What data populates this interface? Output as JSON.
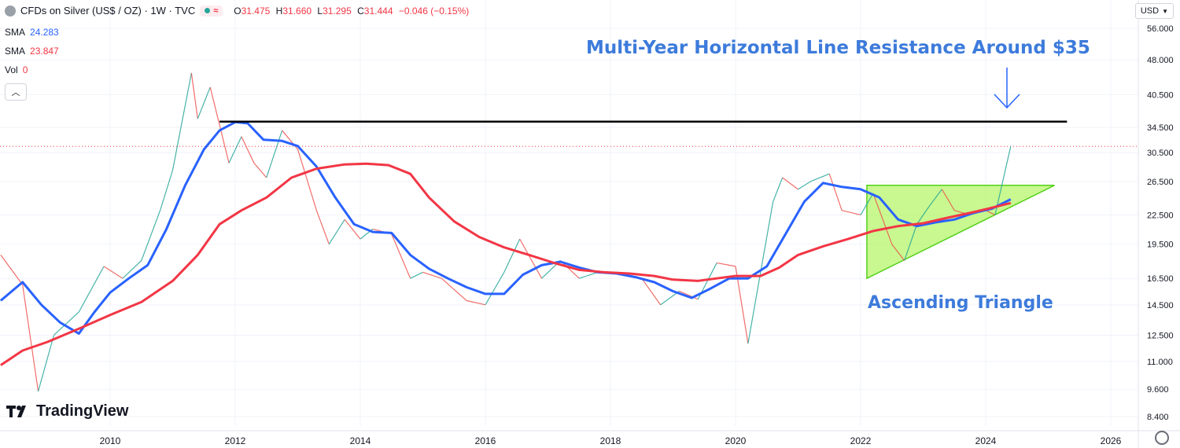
{
  "header": {
    "title": "CFDs on Silver (US$ / OZ) · 1W · TVC",
    "ohlc": {
      "o_label": "O",
      "o": "31.475",
      "h_label": "H",
      "h": "31.660",
      "l_label": "L",
      "l": "31.295",
      "c_label": "C",
      "c": "31.444",
      "change": "−0.046 (−0.15%)"
    }
  },
  "indicators": [
    {
      "name": "SMA",
      "value": "24.283",
      "color": "#2962ff"
    },
    {
      "name": "SMA",
      "value": "23.847",
      "color": "#f23645"
    },
    {
      "name": "Vol",
      "value": "0",
      "color": "#f23645"
    }
  ],
  "currency": "USD",
  "logo": "TradingView",
  "annotations": {
    "resistance": "Multi-Year Horizontal Line Resistance Around $35",
    "triangle": "Ascending Triangle"
  },
  "chart_data": {
    "type": "line",
    "title": "",
    "log_scale": true,
    "y_ticks": [
      "56.000",
      "48.000",
      "40.500",
      "34.500",
      "30.500",
      "26.500",
      "22.500",
      "19.500",
      "16.500",
      "14.500",
      "12.500",
      "11.000",
      "9.600",
      "8.400"
    ],
    "x_ticks": [
      "2010",
      "2012",
      "2014",
      "2016",
      "2018",
      "2020",
      "2022",
      "2024",
      "2026"
    ],
    "xlim": [
      2008.25,
      2024.45
    ],
    "price_series": [
      [
        2008.25,
        18.5
      ],
      [
        2008.6,
        16.0
      ],
      [
        2008.85,
        9.5
      ],
      [
        2009.1,
        12.5
      ],
      [
        2009.5,
        14.0
      ],
      [
        2009.9,
        17.5
      ],
      [
        2010.2,
        16.5
      ],
      [
        2010.5,
        18.0
      ],
      [
        2010.8,
        23.0
      ],
      [
        2011.0,
        28.0
      ],
      [
        2011.3,
        45.0
      ],
      [
        2011.4,
        36.0
      ],
      [
        2011.6,
        42.0
      ],
      [
        2011.9,
        29.0
      ],
      [
        2012.1,
        33.0
      ],
      [
        2012.3,
        29.0
      ],
      [
        2012.5,
        27.0
      ],
      [
        2012.75,
        34.0
      ],
      [
        2013.0,
        31.0
      ],
      [
        2013.3,
        23.0
      ],
      [
        2013.5,
        19.5
      ],
      [
        2013.75,
        22.0
      ],
      [
        2014.0,
        20.0
      ],
      [
        2014.2,
        21.0
      ],
      [
        2014.5,
        20.5
      ],
      [
        2014.8,
        16.5
      ],
      [
        2015.0,
        17.0
      ],
      [
        2015.3,
        16.5
      ],
      [
        2015.7,
        14.8
      ],
      [
        2016.0,
        14.5
      ],
      [
        2016.3,
        17.0
      ],
      [
        2016.55,
        20.0
      ],
      [
        2016.9,
        16.5
      ],
      [
        2017.2,
        18.0
      ],
      [
        2017.5,
        16.5
      ],
      [
        2017.8,
        17.0
      ],
      [
        2018.1,
        17.0
      ],
      [
        2018.5,
        16.5
      ],
      [
        2018.8,
        14.5
      ],
      [
        2019.1,
        15.5
      ],
      [
        2019.4,
        14.9
      ],
      [
        2019.7,
        17.8
      ],
      [
        2020.0,
        17.5
      ],
      [
        2020.2,
        12.0
      ],
      [
        2020.4,
        17.0
      ],
      [
        2020.6,
        24.0
      ],
      [
        2020.75,
        27.0
      ],
      [
        2021.0,
        25.5
      ],
      [
        2021.2,
        26.5
      ],
      [
        2021.5,
        27.5
      ],
      [
        2021.7,
        23.0
      ],
      [
        2022.0,
        22.5
      ],
      [
        2022.2,
        25.0
      ],
      [
        2022.5,
        19.5
      ],
      [
        2022.7,
        18.0
      ],
      [
        2022.9,
        21.5
      ],
      [
        2023.1,
        23.5
      ],
      [
        2023.3,
        25.5
      ],
      [
        2023.5,
        23.0
      ],
      [
        2023.75,
        22.5
      ],
      [
        2024.0,
        23.0
      ],
      [
        2024.15,
        22.5
      ],
      [
        2024.3,
        27.5
      ],
      [
        2024.4,
        31.444
      ]
    ],
    "series": [
      {
        "color": "#2962ff",
        "points": [
          [
            2008.25,
            14.8
          ],
          [
            2008.6,
            16.2
          ],
          [
            2008.9,
            14.5
          ],
          [
            2009.2,
            13.3
          ],
          [
            2009.5,
            12.6
          ],
          [
            2009.75,
            14.0
          ],
          [
            2010.0,
            15.4
          ],
          [
            2010.3,
            16.5
          ],
          [
            2010.6,
            17.6
          ],
          [
            2010.9,
            21.0
          ],
          [
            2011.2,
            26.0
          ],
          [
            2011.5,
            31.0
          ],
          [
            2011.75,
            34.0
          ],
          [
            2012.0,
            35.4
          ],
          [
            2012.2,
            35.2
          ],
          [
            2012.45,
            32.5
          ],
          [
            2012.75,
            32.3
          ],
          [
            2013.0,
            31.5
          ],
          [
            2013.3,
            28.5
          ],
          [
            2013.6,
            24.5
          ],
          [
            2013.9,
            21.5
          ],
          [
            2014.2,
            20.7
          ],
          [
            2014.5,
            20.6
          ],
          [
            2014.8,
            18.5
          ],
          [
            2015.1,
            17.3
          ],
          [
            2015.4,
            16.5
          ],
          [
            2015.7,
            15.8
          ],
          [
            2016.0,
            15.3
          ],
          [
            2016.3,
            15.3
          ],
          [
            2016.6,
            16.8
          ],
          [
            2016.9,
            17.6
          ],
          [
            2017.2,
            17.9
          ],
          [
            2017.5,
            17.4
          ],
          [
            2017.8,
            17.0
          ],
          [
            2018.1,
            16.9
          ],
          [
            2018.4,
            16.6
          ],
          [
            2018.7,
            16.2
          ],
          [
            2019.0,
            15.5
          ],
          [
            2019.3,
            15.0
          ],
          [
            2019.6,
            15.7
          ],
          [
            2019.9,
            16.5
          ],
          [
            2020.2,
            16.5
          ],
          [
            2020.5,
            17.5
          ],
          [
            2020.8,
            20.5
          ],
          [
            2021.1,
            24.0
          ],
          [
            2021.4,
            26.3
          ],
          [
            2021.7,
            25.8
          ],
          [
            2022.0,
            25.5
          ],
          [
            2022.3,
            24.5
          ],
          [
            2022.6,
            22.0
          ],
          [
            2022.9,
            21.3
          ],
          [
            2023.2,
            21.7
          ],
          [
            2023.5,
            22.0
          ],
          [
            2023.8,
            22.7
          ],
          [
            2024.1,
            23.2
          ],
          [
            2024.4,
            24.283
          ]
        ]
      },
      {
        "color": "#f23645",
        "points": [
          [
            2008.25,
            10.8
          ],
          [
            2008.6,
            11.6
          ],
          [
            2009.0,
            12.1
          ],
          [
            2009.5,
            12.9
          ],
          [
            2010.0,
            13.8
          ],
          [
            2010.5,
            14.7
          ],
          [
            2011.0,
            16.3
          ],
          [
            2011.4,
            18.5
          ],
          [
            2011.75,
            21.5
          ],
          [
            2012.1,
            23.0
          ],
          [
            2012.5,
            24.5
          ],
          [
            2012.9,
            27.0
          ],
          [
            2013.3,
            28.2
          ],
          [
            2013.75,
            28.8
          ],
          [
            2014.1,
            28.9
          ],
          [
            2014.45,
            28.7
          ],
          [
            2014.8,
            27.5
          ],
          [
            2015.1,
            24.5
          ],
          [
            2015.5,
            21.8
          ],
          [
            2015.9,
            20.2
          ],
          [
            2016.3,
            19.2
          ],
          [
            2016.7,
            18.5
          ],
          [
            2017.1,
            17.8
          ],
          [
            2017.5,
            17.2
          ],
          [
            2017.9,
            17.0
          ],
          [
            2018.3,
            16.9
          ],
          [
            2018.7,
            16.7
          ],
          [
            2019.0,
            16.4
          ],
          [
            2019.4,
            16.3
          ],
          [
            2019.7,
            16.5
          ],
          [
            2020.0,
            16.7
          ],
          [
            2020.4,
            16.7
          ],
          [
            2020.7,
            17.4
          ],
          [
            2021.0,
            18.5
          ],
          [
            2021.4,
            19.3
          ],
          [
            2021.8,
            20.0
          ],
          [
            2022.2,
            20.8
          ],
          [
            2022.6,
            21.3
          ],
          [
            2023.0,
            21.6
          ],
          [
            2023.4,
            22.2
          ],
          [
            2023.8,
            22.8
          ],
          [
            2024.1,
            23.3
          ],
          [
            2024.4,
            23.847
          ]
        ]
      }
    ],
    "resistance_line": {
      "price": 35.5,
      "x_start": 2011.75,
      "x_end": 2025.3,
      "color": "#000000"
    },
    "triangle": {
      "points": [
        [
          2022.1,
          26.0
        ],
        [
          2025.1,
          26.0
        ],
        [
          2022.1,
          16.5
        ]
      ],
      "fill": "#b5f56a",
      "stroke": "#55d01a"
    },
    "current_price_level": 31.444
  }
}
